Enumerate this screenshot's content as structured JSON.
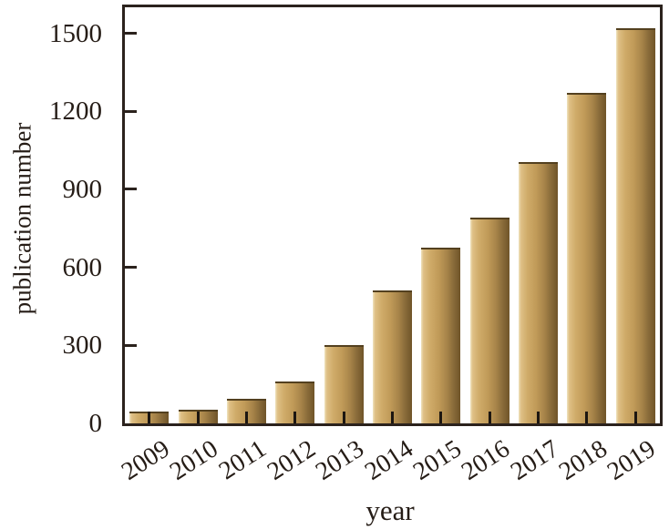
{
  "figure": {
    "background": "#ffffff"
  },
  "chart_data": {
    "type": "bar",
    "title": "",
    "categories": [
      "2009",
      "2010",
      "2011",
      "2012",
      "2013",
      "2014",
      "2015",
      "2016",
      "2017",
      "2018",
      "2019"
    ],
    "values": [
      45,
      52,
      95,
      160,
      300,
      510,
      675,
      790,
      1005,
      1270,
      1520
    ],
    "xlabel": "year",
    "ylabel": "publication number",
    "yticks": [
      0,
      300,
      600,
      900,
      1200,
      1500
    ],
    "ylim": [
      0,
      1600
    ],
    "grid": false,
    "legend": "none",
    "frame": "box",
    "tick_direction": "in",
    "bar_gradient_stops": [
      {
        "color": "#f0e4c0",
        "pos": 0
      },
      {
        "color": "#dfc086",
        "pos": 6
      },
      {
        "color": "#d0ac6a",
        "pos": 22
      },
      {
        "color": "#c09a58",
        "pos": 45
      },
      {
        "color": "#a8854a",
        "pos": 65
      },
      {
        "color": "#8a6c3a",
        "pos": 82
      },
      {
        "color": "#6f5429",
        "pos": 100
      }
    ],
    "bar_top_edge_color": "#53401f",
    "axis_color": "#2b221d",
    "text_color": "#251c16"
  }
}
